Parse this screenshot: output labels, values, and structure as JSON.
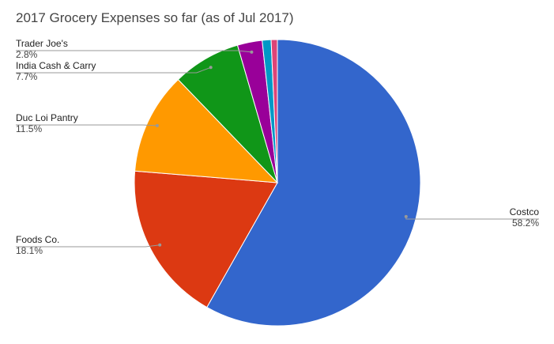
{
  "chart_data": {
    "type": "pie",
    "title": "2017 Grocery Expenses so far (as of Jul 2017)",
    "slices": [
      {
        "label": "Costco",
        "pct_label": "58.2%",
        "value": 58.2,
        "color": "#3366cc"
      },
      {
        "label": "Foods Co.",
        "pct_label": "18.1%",
        "value": 18.1,
        "color": "#dc3912"
      },
      {
        "label": "Duc Loi Pantry",
        "pct_label": "11.5%",
        "value": 11.5,
        "color": "#ff9900"
      },
      {
        "label": "India Cash & Carry",
        "pct_label": "7.7%",
        "value": 7.7,
        "color": "#109618"
      },
      {
        "label": "Trader Joe's",
        "pct_label": "2.8%",
        "value": 2.8,
        "color": "#990099"
      },
      {
        "label": "",
        "pct_label": "",
        "value": 1.0,
        "color": "#0099c6"
      },
      {
        "label": "",
        "pct_label": "",
        "value": 0.7,
        "color": "#dd4477"
      }
    ],
    "legend": "none"
  }
}
